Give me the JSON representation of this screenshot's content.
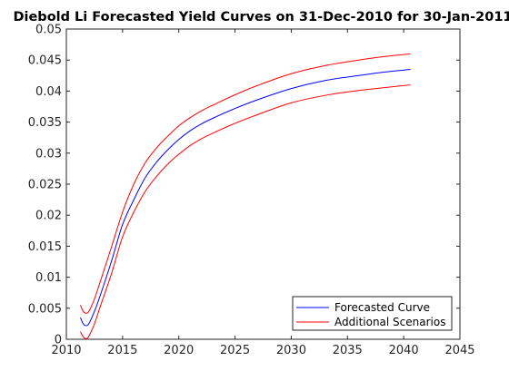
{
  "chart_data": {
    "type": "line",
    "title": "Diebold Li Forecasted Yield Curves on 31-Dec-2010 for 30-Jan-2011",
    "xlabel": "",
    "ylabel": "",
    "xlim": [
      2010,
      2045
    ],
    "ylim": [
      0,
      0.05
    ],
    "x_ticks": [
      2010,
      2015,
      2020,
      2025,
      2030,
      2035,
      2040,
      2045
    ],
    "y_ticks": [
      0,
      0.005,
      0.01,
      0.015,
      0.02,
      0.025,
      0.03,
      0.035,
      0.04,
      0.045,
      0.05
    ],
    "x_tick_labels": [
      "2010",
      "2015",
      "2020",
      "2025",
      "2030",
      "2035",
      "2040",
      "2045"
    ],
    "y_tick_labels": [
      "0",
      "0.005",
      "0.01",
      "0.015",
      "0.02",
      "0.025",
      "0.03",
      "0.035",
      "0.04",
      "0.045",
      "0.05"
    ],
    "grid": false,
    "legend_position": "bottom-right",
    "legend": [
      {
        "label": "Forecasted Curve",
        "color": "#0000ff"
      },
      {
        "label": "Additional Scenarios",
        "color": "#ff0000"
      }
    ],
    "series": [
      {
        "name": "Forecasted Curve",
        "color": "#0000ff",
        "x": [
          2011.25,
          2011.5,
          2011.75,
          2012.0,
          2012.5,
          2013.0,
          2014.0,
          2015.0,
          2016.0,
          2017.0,
          2018.0,
          2019.0,
          2020.0,
          2021.0,
          2022.0,
          2023.0,
          2025.0,
          2027.0,
          2030.0,
          2033.0,
          2036.0,
          2038.0,
          2040.6
        ],
        "y": [
          0.0035,
          0.0025,
          0.0022,
          0.0025,
          0.0045,
          0.007,
          0.0125,
          0.0185,
          0.0225,
          0.026,
          0.0285,
          0.0305,
          0.0322,
          0.0336,
          0.0347,
          0.0356,
          0.0372,
          0.0386,
          0.0404,
          0.0417,
          0.0425,
          0.043,
          0.0435
        ]
      },
      {
        "name": "Additional Scenarios",
        "color": "#ff0000",
        "x": [
          2011.25,
          2011.5,
          2011.75,
          2012.0,
          2012.5,
          2013.0,
          2014.0,
          2015.0,
          2016.0,
          2017.0,
          2018.0,
          2019.0,
          2020.0,
          2021.0,
          2022.0,
          2023.0,
          2025.0,
          2027.0,
          2030.0,
          2033.0,
          2036.0,
          2038.0,
          2040.6
        ],
        "y": [
          0.0055,
          0.0045,
          0.0042,
          0.0045,
          0.0065,
          0.0092,
          0.0148,
          0.0205,
          0.025,
          0.0284,
          0.0308,
          0.0327,
          0.0344,
          0.0357,
          0.0368,
          0.0377,
          0.0394,
          0.0409,
          0.0428,
          0.0441,
          0.045,
          0.0455,
          0.046
        ]
      },
      {
        "name": "Additional Scenarios",
        "color": "#ff0000",
        "x": [
          2011.25,
          2011.5,
          2011.75,
          2012.0,
          2012.5,
          2013.0,
          2014.0,
          2015.0,
          2016.0,
          2017.0,
          2018.0,
          2019.0,
          2020.0,
          2021.0,
          2022.0,
          2023.0,
          2025.0,
          2027.0,
          2030.0,
          2033.0,
          2036.0,
          2038.0,
          2040.6
        ],
        "y": [
          0.0012,
          0.0004,
          0.0001,
          0.0005,
          0.0025,
          0.0052,
          0.0105,
          0.0165,
          0.0205,
          0.0238,
          0.0262,
          0.0282,
          0.0298,
          0.0312,
          0.0323,
          0.0332,
          0.0348,
          0.0362,
          0.0381,
          0.0393,
          0.0401,
          0.0405,
          0.041
        ]
      }
    ]
  }
}
